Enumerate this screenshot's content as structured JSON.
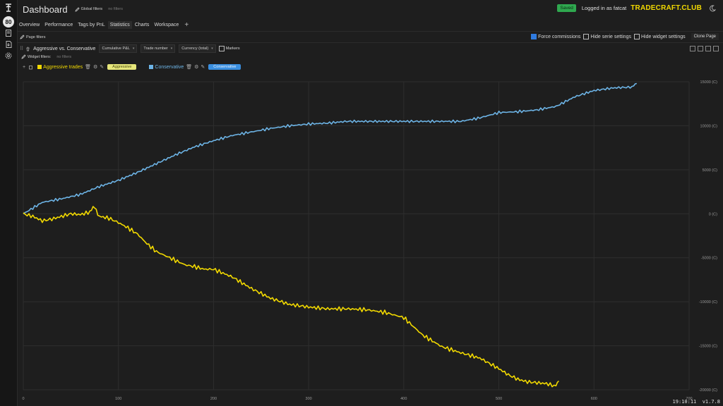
{
  "rail": {
    "badge": "80"
  },
  "header": {
    "title": "Dashboard",
    "global_filters_label": "Global filters",
    "global_filters_value": "no filters",
    "saved_label": "Saved",
    "logged_in_text": "Logged in as fatcat",
    "brand": "TRADECRAFT.CLUB"
  },
  "tabs": [
    {
      "label": "Overview"
    },
    {
      "label": "Performance"
    },
    {
      "label": "Tags by PnL"
    },
    {
      "label": "Statistics"
    },
    {
      "label": "Charts"
    },
    {
      "label": "Workspace"
    }
  ],
  "page_filters": {
    "label": "Page filters",
    "force_commissions": "Force commissions",
    "hide_serie_settings": "Hide serie settings",
    "hide_widget_settings": "Hide widget settings",
    "clone_page": "Clone Page"
  },
  "widget": {
    "title": "Aggressive vs. Conservative",
    "metric_select": "Cumulative P&L",
    "x_select": "Trade number",
    "unit_select": "Currency (total)",
    "markers_label": "Markers",
    "widget_filters_label": "Widget filters:",
    "widget_filters_value": "no filters"
  },
  "series_legend": [
    {
      "name": "Aggressive trades",
      "tag": "Aggressive",
      "color": "#f2d900"
    },
    {
      "name": "Conservative",
      "tag": "Conservative",
      "color": "#6db4e6"
    }
  ],
  "chart_data": {
    "type": "line",
    "x_label": "",
    "y_label": "",
    "xlim": [
      0,
      700
    ],
    "ylim": [
      -20000,
      15000
    ],
    "x_ticks": [
      "0",
      "100",
      "200",
      "300",
      "400",
      "500",
      "600",
      "700"
    ],
    "y_ticks": [
      "15000 (C)",
      "10000 (C)",
      "5000 (C)",
      "0 (C)",
      "-5000 (C)",
      "-10000 (C)",
      "-15000 (C)",
      "-20000 (C)"
    ],
    "grid": true,
    "series": [
      {
        "name": "Conservative",
        "color": "#6db4e6",
        "x": [
          0,
          20,
          40,
          60,
          80,
          100,
          120,
          140,
          160,
          180,
          200,
          220,
          240,
          260,
          280,
          300,
          320,
          340,
          360,
          380,
          400,
          420,
          440,
          460,
          480,
          500,
          520,
          540,
          560,
          580,
          600,
          620,
          640,
          645
        ],
        "values": [
          0,
          1300,
          1700,
          2200,
          3100,
          3800,
          4700,
          5700,
          6700,
          7600,
          8300,
          8900,
          9300,
          9700,
          10000,
          10200,
          10300,
          10500,
          10500,
          10500,
          10500,
          10500,
          10500,
          10500,
          10900,
          11500,
          11600,
          11800,
          12200,
          13300,
          14000,
          14300,
          14400,
          14800
        ]
      },
      {
        "name": "Aggressive trades",
        "color": "#f2d900",
        "x": [
          0,
          10,
          20,
          30,
          40,
          50,
          60,
          70,
          75,
          80,
          90,
          100,
          110,
          120,
          130,
          140,
          150,
          160,
          170,
          180,
          190,
          200,
          220,
          240,
          260,
          280,
          300,
          320,
          340,
          360,
          380,
          400,
          420,
          440,
          460,
          480,
          500,
          510,
          520,
          530,
          540,
          550,
          560,
          563
        ],
        "values": [
          0,
          -300,
          -800,
          -600,
          -300,
          0,
          -100,
          200,
          800,
          -300,
          -500,
          -1000,
          -1600,
          -2300,
          -3400,
          -4300,
          -4800,
          -5300,
          -5800,
          -6000,
          -6300,
          -6300,
          -7200,
          -8500,
          -9600,
          -10300,
          -10600,
          -10800,
          -10800,
          -10900,
          -11200,
          -11800,
          -13800,
          -15100,
          -15800,
          -16400,
          -17600,
          -18300,
          -18800,
          -19100,
          -19200,
          -19300,
          -19600,
          -19000
        ]
      }
    ]
  },
  "footer": {
    "time": "19:10:11",
    "version": "v1.7.8"
  }
}
